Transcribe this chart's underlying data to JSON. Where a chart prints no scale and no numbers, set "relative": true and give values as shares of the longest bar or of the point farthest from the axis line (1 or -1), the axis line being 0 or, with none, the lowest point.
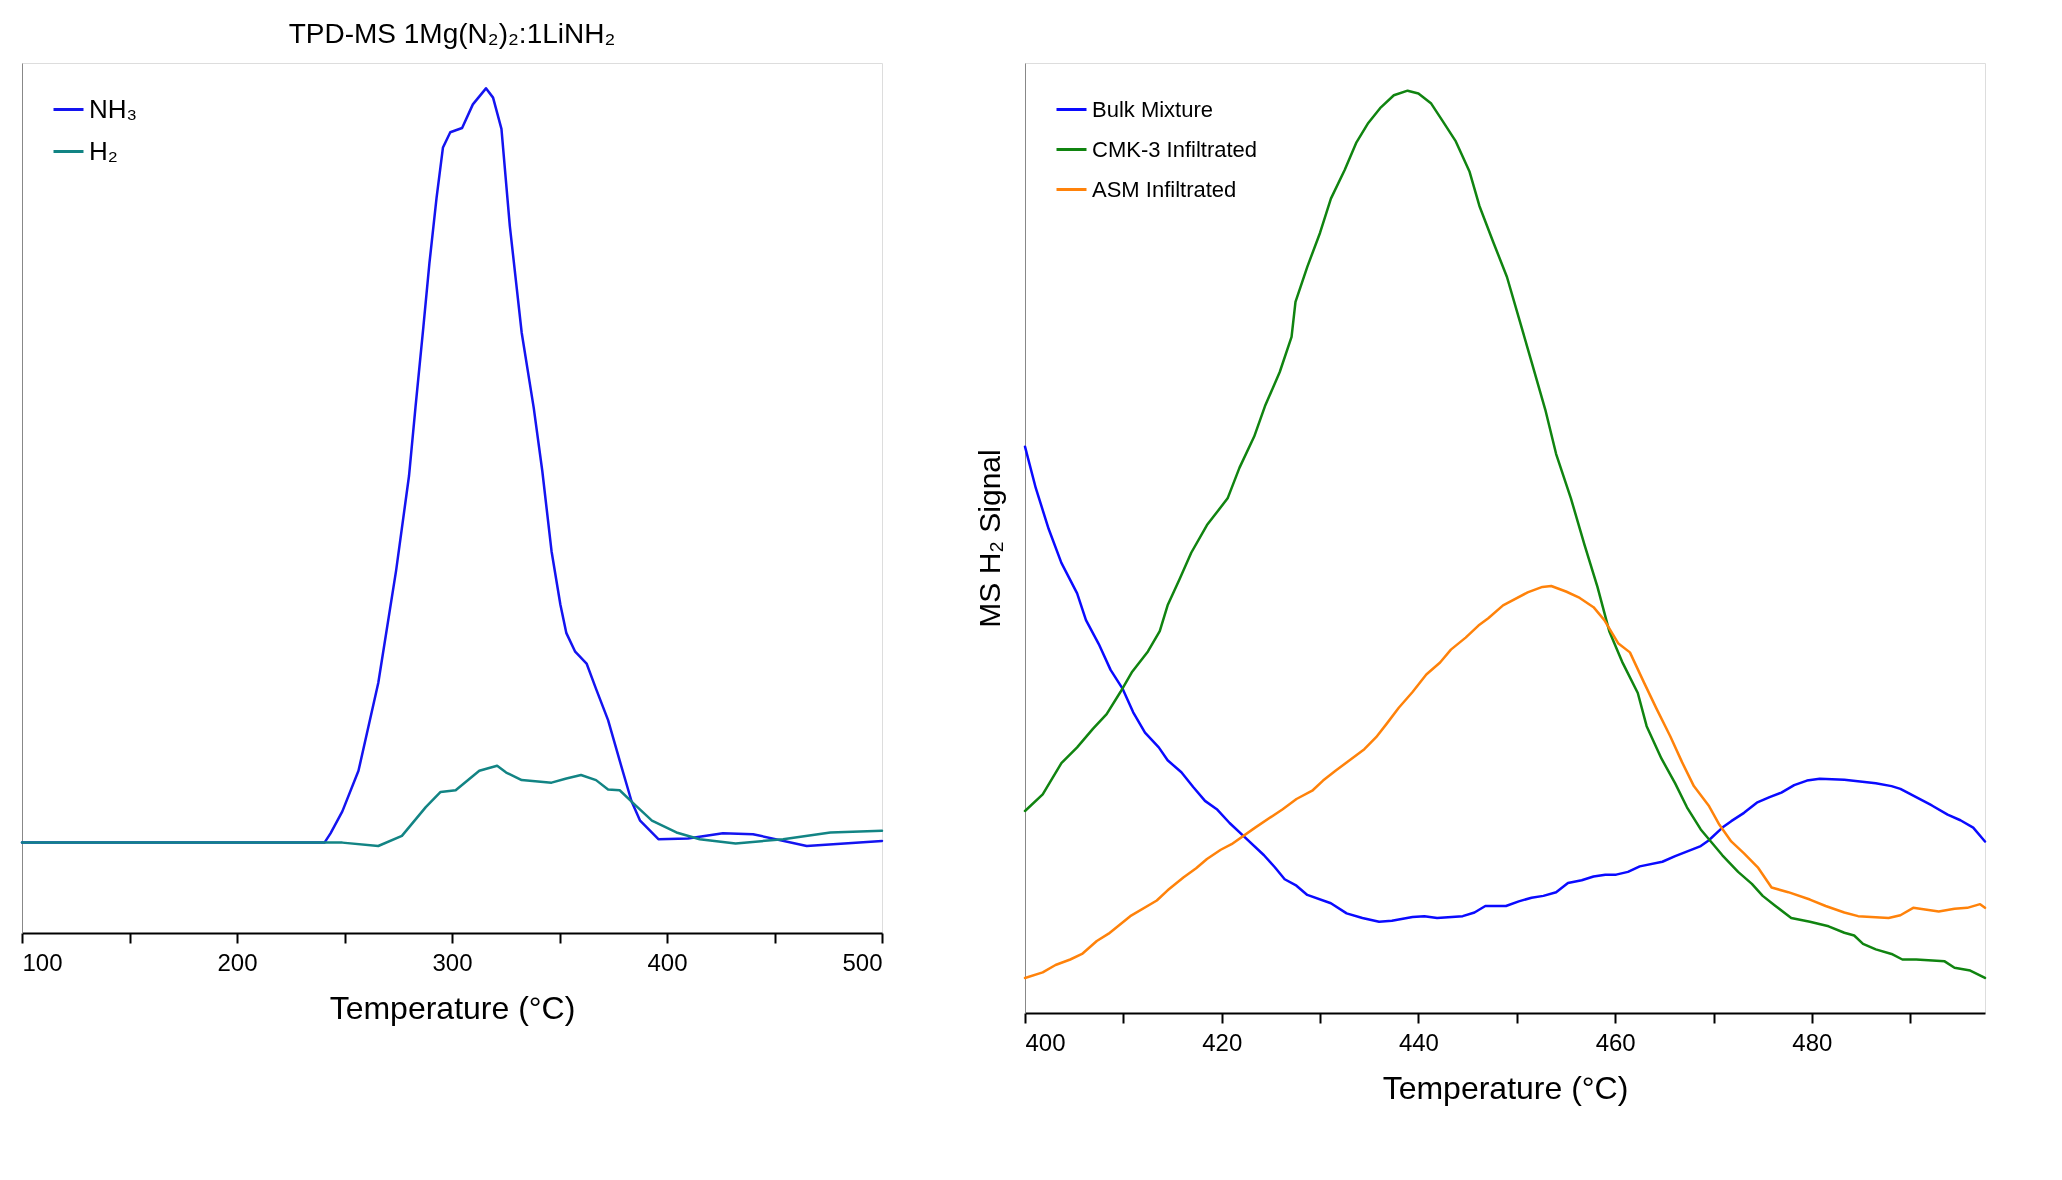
{
  "chart_data": [
    {
      "type": "line",
      "title": "TPD-MS 1Mg(N₂)₂:1LiNH₂",
      "xlabel": "Temperature (°C)",
      "relative": true,
      "legend": "top left",
      "grid": false,
      "xlim": [
        100,
        500
      ],
      "xticks": [
        100,
        {
          "value": 150,
          "label": null
        },
        200,
        {
          "value": 250,
          "label": null
        },
        300,
        {
          "value": 350,
          "label": null
        },
        400,
        {
          "value": 450,
          "label": null
        },
        500
      ],
      "series": [
        {
          "name": "NH₃",
          "color": "#1414f0",
          "x": [
            100,
            240.7,
            243.5,
            249,
            256.5,
            265.7,
            274,
            280,
            283,
            286.7,
            289.5,
            292.8,
            295.8,
            299.2,
            304.7,
            309.7,
            315.8,
            319.1,
            323,
            326.9,
            332.4,
            338,
            342,
            346.3,
            350.4,
            353.2,
            357.3,
            362.6,
            367,
            372.6,
            378,
            383.5,
            387.5,
            396,
            409.7,
            426,
            440,
            465,
            500
          ],
          "values": [
            0.107,
            0.107,
            0.118,
            0.144,
            0.192,
            0.296,
            0.429,
            0.541,
            0.622,
            0.718,
            0.793,
            0.87,
            0.93,
            0.948,
            0.953,
            0.981,
            1.0,
            0.989,
            0.952,
            0.837,
            0.711,
            0.622,
            0.547,
            0.452,
            0.389,
            0.355,
            0.333,
            0.319,
            0.289,
            0.252,
            0.204,
            0.156,
            0.133,
            0.111,
            0.112,
            0.118,
            0.117,
            0.103,
            0.109
          ]
        },
        {
          "name": "H₂",
          "color": "#128484",
          "x": [
            100,
            249,
            265.7,
            276.7,
            287.8,
            294.7,
            301.7,
            312.7,
            321,
            325.2,
            332.4,
            346.3,
            353.2,
            360,
            367,
            372.6,
            378,
            385,
            393,
            404.4,
            415.2,
            431.9,
            454,
            476,
            500
          ],
          "values": [
            0.107,
            0.107,
            0.103,
            0.115,
            0.149,
            0.167,
            0.169,
            0.192,
            0.198,
            0.19,
            0.181,
            0.178,
            0.183,
            0.187,
            0.181,
            0.17,
            0.169,
            0.152,
            0.133,
            0.119,
            0.111,
            0.106,
            0.111,
            0.119,
            0.121
          ]
        }
      ]
    },
    {
      "type": "line",
      "xlabel": "Temperature (°C)",
      "ylabel": "MS H₂ Signal",
      "relative": true,
      "legend": "top left",
      "grid": false,
      "xlim": [
        400,
        497.6
      ],
      "xticks": [
        400,
        {
          "value": 410,
          "label": null
        },
        420,
        {
          "value": 430,
          "label": null
        },
        440,
        {
          "value": 450,
          "label": null
        },
        460,
        {
          "value": 470,
          "label": null
        },
        480,
        {
          "value": 490,
          "label": null
        }
      ],
      "series": [
        {
          "name": "Bulk Mixture",
          "color": "#0a0aff",
          "x": [
            400.0,
            401.1,
            402.4,
            403.7,
            405.3,
            406.2,
            407.5,
            408.7,
            409.9,
            411.0,
            412.2,
            413.6,
            414.5,
            415.9,
            417.1,
            418.3,
            419.5,
            420.8,
            422.2,
            424.3,
            425.4,
            426.4,
            427.6,
            428.7,
            431.1,
            432.7,
            434.3,
            436.0,
            437.3,
            439.4,
            440.6,
            441.9,
            444.5,
            445.7,
            446.8,
            448.9,
            450.2,
            451.5,
            452.7,
            454.0,
            455.2,
            456.6,
            457.8,
            459.0,
            460.1,
            461.3,
            462.5,
            464.8,
            466.1,
            468.7,
            469.5,
            470.9,
            471.8,
            473.1,
            474.4,
            475.7,
            476.9,
            478.2,
            479.5,
            480.8,
            483.3,
            486.5,
            488.1,
            489.0,
            490.6,
            492.2,
            493.8,
            495.1,
            496.4,
            497.6
          ],
          "values": [
            0.614,
            0.569,
            0.525,
            0.488,
            0.455,
            0.426,
            0.4,
            0.372,
            0.352,
            0.326,
            0.304,
            0.288,
            0.274,
            0.261,
            0.245,
            0.23,
            0.221,
            0.206,
            0.192,
            0.171,
            0.158,
            0.145,
            0.138,
            0.128,
            0.119,
            0.108,
            0.103,
            0.099,
            0.1,
            0.104,
            0.105,
            0.103,
            0.105,
            0.109,
            0.116,
            0.116,
            0.121,
            0.125,
            0.127,
            0.131,
            0.141,
            0.144,
            0.148,
            0.15,
            0.15,
            0.153,
            0.159,
            0.164,
            0.17,
            0.181,
            0.187,
            0.201,
            0.208,
            0.217,
            0.228,
            0.234,
            0.239,
            0.247,
            0.252,
            0.254,
            0.253,
            0.249,
            0.246,
            0.243,
            0.234,
            0.225,
            0.215,
            0.209,
            0.201,
            0.186
          ]
        },
        {
          "name": "CMK-3 Infiltrated",
          "color": "#108410",
          "x": [
            400.0,
            401.8,
            403.7,
            405.3,
            406.9,
            408.3,
            409.7,
            410.9,
            412.5,
            413.7,
            414.5,
            415.7,
            416.9,
            418.5,
            420.6,
            421.8,
            423.3,
            424.4,
            425.9,
            427.1,
            427.5,
            428.7,
            430.0,
            431.1,
            432.5,
            433.7,
            434.9,
            436.1,
            437.5,
            438.9,
            440.0,
            441.3,
            442.4,
            443.8,
            445.2,
            446.2,
            447.6,
            449.0,
            450.2,
            451.5,
            452.9,
            454.0,
            455.5,
            456.9,
            458.2,
            459.4,
            460.7,
            462.3,
            463.2,
            464.7,
            466.1,
            467.3,
            468.7,
            470.9,
            472.5,
            473.9,
            475.0,
            476.3,
            477.9,
            479.8,
            481.7,
            483.3,
            484.3,
            485.2,
            486.5,
            488.1,
            489.2,
            490.6,
            493.5,
            494.5,
            496.1,
            497.6
          ],
          "values": [
            0.219,
            0.237,
            0.271,
            0.288,
            0.308,
            0.324,
            0.348,
            0.37,
            0.392,
            0.414,
            0.442,
            0.47,
            0.499,
            0.529,
            0.558,
            0.591,
            0.625,
            0.658,
            0.695,
            0.733,
            0.771,
            0.809,
            0.846,
            0.883,
            0.914,
            0.944,
            0.965,
            0.981,
            0.995,
            1.0,
            0.997,
            0.986,
            0.968,
            0.945,
            0.912,
            0.875,
            0.836,
            0.798,
            0.754,
            0.706,
            0.654,
            0.606,
            0.558,
            0.507,
            0.462,
            0.414,
            0.381,
            0.347,
            0.311,
            0.276,
            0.249,
            0.223,
            0.199,
            0.171,
            0.153,
            0.14,
            0.127,
            0.116,
            0.103,
            0.099,
            0.094,
            0.087,
            0.084,
            0.075,
            0.069,
            0.064,
            0.058,
            0.058,
            0.056,
            0.049,
            0.046,
            0.038
          ]
        },
        {
          "name": "ASM Infiltrated",
          "color": "#ff820a",
          "x": [
            400.0,
            401.8,
            403.1,
            404.6,
            405.8,
            407.3,
            408.5,
            410.7,
            413.4,
            414.5,
            416.1,
            417.4,
            418.5,
            419.9,
            421.0,
            423.4,
            426.2,
            427.6,
            429.2,
            430.3,
            431.6,
            433.0,
            434.5,
            435.7,
            436.8,
            438.0,
            439.4,
            440.8,
            442.2,
            443.3,
            444.8,
            446.1,
            447.1,
            448.6,
            451.1,
            452.6,
            453.5,
            455.0,
            456.4,
            457.8,
            458.9,
            460.3,
            461.5,
            462.9,
            464.2,
            465.6,
            466.8,
            468.0,
            469.5,
            470.6,
            471.8,
            473.1,
            474.5,
            475.9,
            477.6,
            479.8,
            481.4,
            483.3,
            484.7,
            487.8,
            489.0,
            490.3,
            492.9,
            494.5,
            495.8,
            497.1,
            497.6
          ],
          "values": [
            0.038,
            0.044,
            0.052,
            0.058,
            0.064,
            0.078,
            0.086,
            0.105,
            0.122,
            0.133,
            0.147,
            0.157,
            0.167,
            0.177,
            0.183,
            0.201,
            0.221,
            0.232,
            0.241,
            0.252,
            0.263,
            0.274,
            0.286,
            0.299,
            0.314,
            0.331,
            0.348,
            0.367,
            0.38,
            0.394,
            0.407,
            0.42,
            0.428,
            0.442,
            0.456,
            0.462,
            0.463,
            0.457,
            0.45,
            0.44,
            0.426,
            0.401,
            0.391,
            0.359,
            0.33,
            0.3,
            0.272,
            0.246,
            0.225,
            0.204,
            0.186,
            0.173,
            0.158,
            0.136,
            0.131,
            0.123,
            0.116,
            0.109,
            0.105,
            0.103,
            0.106,
            0.114,
            0.11,
            0.113,
            0.114,
            0.118,
            0.114
          ]
        }
      ]
    }
  ]
}
